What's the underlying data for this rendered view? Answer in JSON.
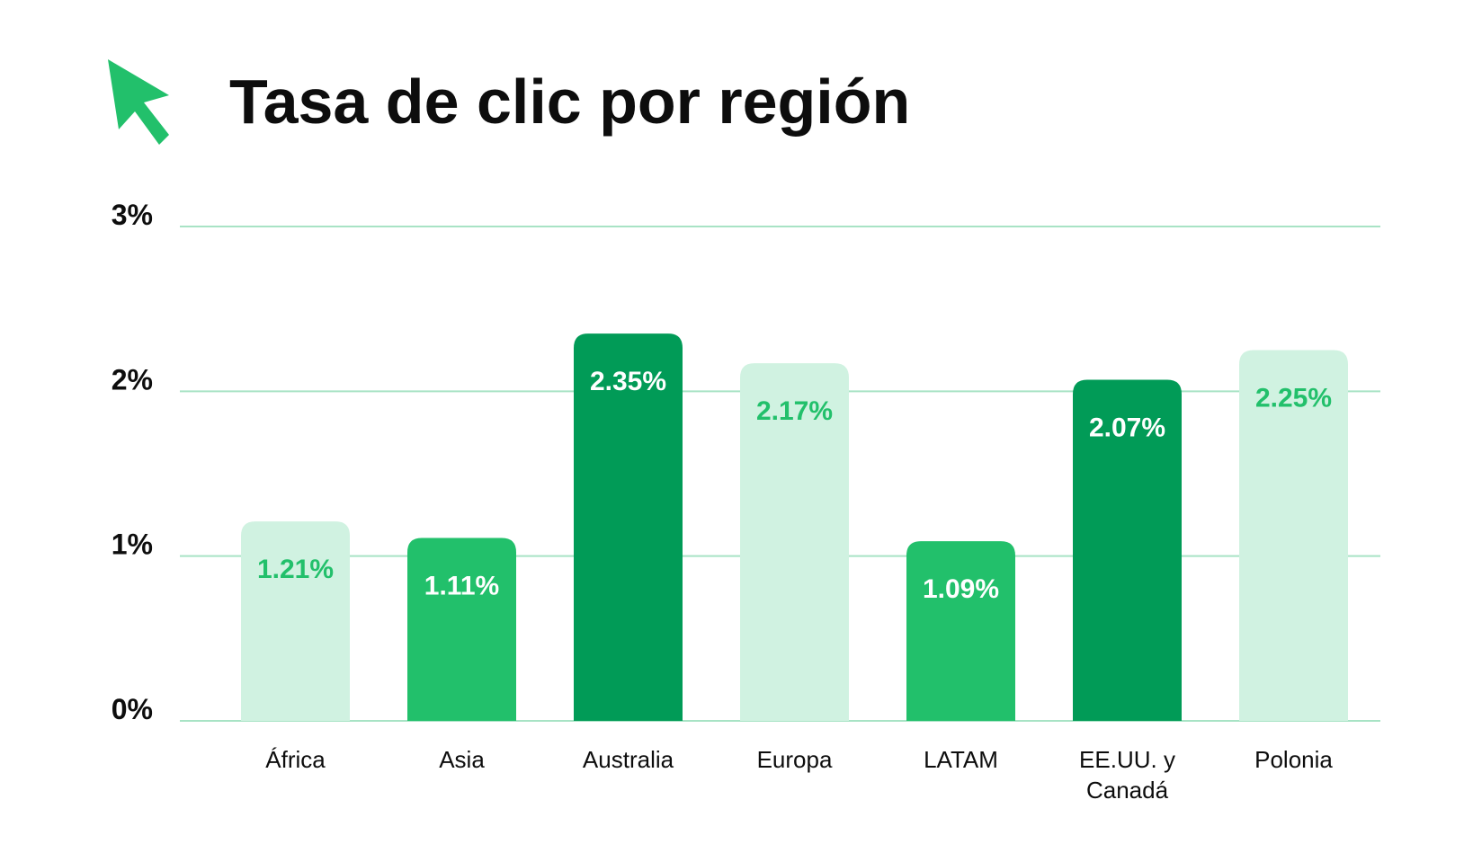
{
  "title": "Tasa de clic por región",
  "logo_icon": "cursor-arrow-icon",
  "colors": {
    "accent": "#22c06b",
    "light": "#d0f2e1",
    "medium": "#22c06b",
    "dark": "#019b57",
    "grid": "#a8e3c5",
    "text": "#0d0d0d"
  },
  "chart_data": {
    "type": "bar",
    "title": "Tasa de clic por región",
    "xlabel": "",
    "ylabel": "",
    "ylim": [
      0,
      3
    ],
    "yticks": [
      0,
      1,
      2,
      3
    ],
    "ytick_labels": [
      "0%",
      "1%",
      "2%",
      "3%"
    ],
    "grid": true,
    "categories": [
      [
        "África"
      ],
      [
        "Asia"
      ],
      [
        "Australia"
      ],
      [
        "Europa"
      ],
      [
        "LATAM"
      ],
      [
        "EE.UU. y",
        "Canadá"
      ],
      [
        "Polonia"
      ]
    ],
    "values": [
      1.21,
      1.11,
      2.35,
      2.17,
      1.09,
      2.07,
      2.25
    ],
    "value_labels": [
      "1.21%",
      "1.11%",
      "2.35%",
      "2.17%",
      "1.09%",
      "2.07%",
      "2.25%"
    ],
    "bar_shades": [
      "light",
      "medium",
      "dark",
      "light",
      "medium",
      "dark",
      "light"
    ]
  }
}
